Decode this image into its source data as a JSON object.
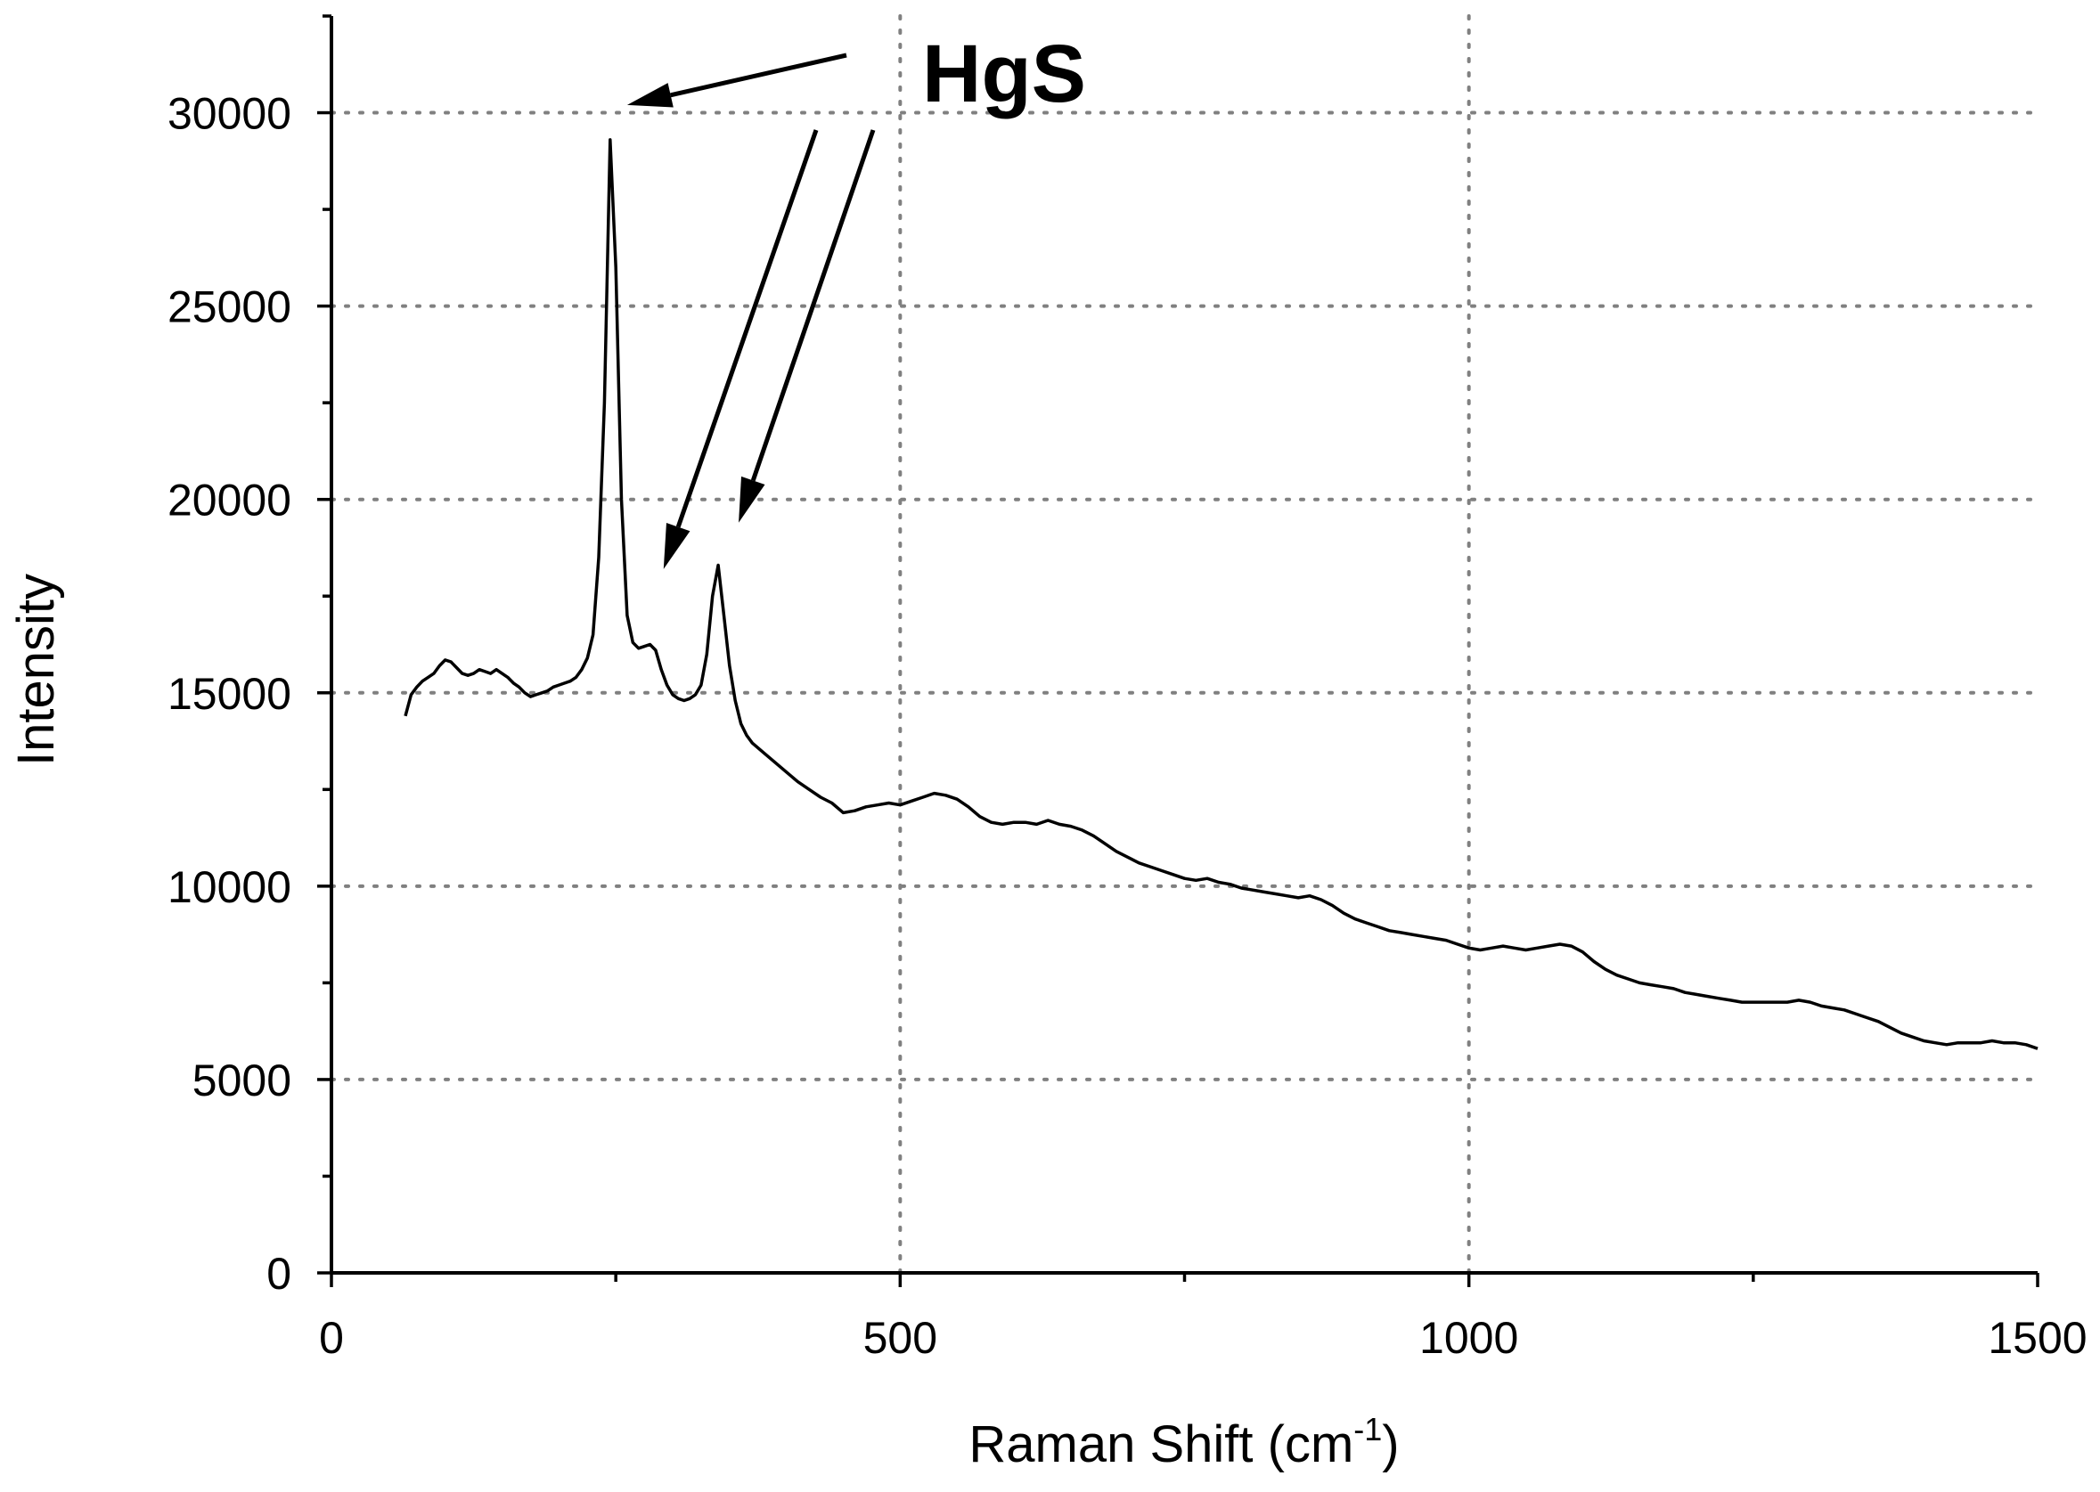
{
  "chart_data": {
    "type": "line",
    "xlabel_main": "Raman Shift (cm",
    "xlabel_sup": "-1",
    "xlabel_end": ")",
    "ylabel": "Intensity",
    "xlim": [
      0,
      1500
    ],
    "ylim": [
      0,
      32500
    ],
    "x_ticks": [
      0,
      500,
      1000,
      1500
    ],
    "y_ticks": [
      0,
      5000,
      10000,
      15000,
      20000,
      25000,
      30000
    ],
    "x_grid": [
      500,
      1000
    ],
    "y_grid": [
      5000,
      10000,
      15000,
      20000,
      25000,
      30000
    ],
    "grid": true,
    "annotation": {
      "text": "HgS",
      "arrow_targets": [
        {
          "x": 260,
          "y": 30200
        },
        {
          "x": 292,
          "y": 18200
        },
        {
          "x": 358,
          "y": 19400
        }
      ]
    },
    "series": [
      {
        "color": "#000000",
        "points": [
          [
            65,
            14400
          ],
          [
            70,
            14950
          ],
          [
            75,
            15150
          ],
          [
            80,
            15300
          ],
          [
            85,
            15400
          ],
          [
            90,
            15500
          ],
          [
            95,
            15700
          ],
          [
            100,
            15850
          ],
          [
            105,
            15800
          ],
          [
            110,
            15650
          ],
          [
            115,
            15500
          ],
          [
            120,
            15450
          ],
          [
            125,
            15500
          ],
          [
            130,
            15600
          ],
          [
            135,
            15550
          ],
          [
            140,
            15500
          ],
          [
            145,
            15600
          ],
          [
            150,
            15500
          ],
          [
            155,
            15400
          ],
          [
            160,
            15250
          ],
          [
            165,
            15150
          ],
          [
            170,
            15000
          ],
          [
            175,
            14900
          ],
          [
            180,
            14950
          ],
          [
            185,
            15000
          ],
          [
            190,
            15050
          ],
          [
            195,
            15150
          ],
          [
            200,
            15200
          ],
          [
            205,
            15250
          ],
          [
            210,
            15300
          ],
          [
            215,
            15400
          ],
          [
            220,
            15600
          ],
          [
            225,
            15900
          ],
          [
            230,
            16500
          ],
          [
            235,
            18500
          ],
          [
            240,
            22500
          ],
          [
            245,
            29300
          ],
          [
            250,
            26000
          ],
          [
            255,
            20000
          ],
          [
            260,
            17000
          ],
          [
            265,
            16300
          ],
          [
            270,
            16150
          ],
          [
            275,
            16200
          ],
          [
            280,
            16250
          ],
          [
            285,
            16100
          ],
          [
            290,
            15600
          ],
          [
            295,
            15200
          ],
          [
            300,
            14950
          ],
          [
            305,
            14850
          ],
          [
            310,
            14800
          ],
          [
            315,
            14850
          ],
          [
            320,
            14950
          ],
          [
            325,
            15200
          ],
          [
            330,
            16000
          ],
          [
            335,
            17500
          ],
          [
            340,
            18300
          ],
          [
            345,
            17000
          ],
          [
            350,
            15700
          ],
          [
            355,
            14800
          ],
          [
            360,
            14200
          ],
          [
            365,
            13900
          ],
          [
            370,
            13700
          ],
          [
            380,
            13450
          ],
          [
            390,
            13200
          ],
          [
            400,
            12950
          ],
          [
            410,
            12700
          ],
          [
            420,
            12500
          ],
          [
            430,
            12300
          ],
          [
            440,
            12150
          ],
          [
            450,
            11900
          ],
          [
            460,
            11950
          ],
          [
            470,
            12050
          ],
          [
            480,
            12100
          ],
          [
            490,
            12150
          ],
          [
            500,
            12100
          ],
          [
            510,
            12200
          ],
          [
            520,
            12300
          ],
          [
            530,
            12400
          ],
          [
            540,
            12350
          ],
          [
            550,
            12250
          ],
          [
            560,
            12050
          ],
          [
            570,
            11800
          ],
          [
            580,
            11650
          ],
          [
            590,
            11600
          ],
          [
            600,
            11650
          ],
          [
            610,
            11650
          ],
          [
            620,
            11600
          ],
          [
            630,
            11700
          ],
          [
            640,
            11600
          ],
          [
            650,
            11550
          ],
          [
            660,
            11450
          ],
          [
            670,
            11300
          ],
          [
            680,
            11100
          ],
          [
            690,
            10900
          ],
          [
            700,
            10750
          ],
          [
            710,
            10600
          ],
          [
            720,
            10500
          ],
          [
            730,
            10400
          ],
          [
            740,
            10300
          ],
          [
            750,
            10200
          ],
          [
            760,
            10150
          ],
          [
            770,
            10200
          ],
          [
            780,
            10100
          ],
          [
            790,
            10050
          ],
          [
            800,
            9950
          ],
          [
            810,
            9900
          ],
          [
            820,
            9850
          ],
          [
            830,
            9800
          ],
          [
            840,
            9750
          ],
          [
            850,
            9700
          ],
          [
            860,
            9750
          ],
          [
            870,
            9650
          ],
          [
            880,
            9500
          ],
          [
            890,
            9300
          ],
          [
            900,
            9150
          ],
          [
            910,
            9050
          ],
          [
            920,
            8950
          ],
          [
            930,
            8850
          ],
          [
            940,
            8800
          ],
          [
            950,
            8750
          ],
          [
            960,
            8700
          ],
          [
            970,
            8650
          ],
          [
            980,
            8600
          ],
          [
            990,
            8500
          ],
          [
            1000,
            8400
          ],
          [
            1010,
            8350
          ],
          [
            1020,
            8400
          ],
          [
            1030,
            8450
          ],
          [
            1040,
            8400
          ],
          [
            1050,
            8350
          ],
          [
            1060,
            8400
          ],
          [
            1070,
            8450
          ],
          [
            1080,
            8500
          ],
          [
            1090,
            8450
          ],
          [
            1100,
            8300
          ],
          [
            1110,
            8050
          ],
          [
            1120,
            7850
          ],
          [
            1130,
            7700
          ],
          [
            1140,
            7600
          ],
          [
            1150,
            7500
          ],
          [
            1160,
            7450
          ],
          [
            1170,
            7400
          ],
          [
            1180,
            7350
          ],
          [
            1190,
            7250
          ],
          [
            1200,
            7200
          ],
          [
            1210,
            7150
          ],
          [
            1220,
            7100
          ],
          [
            1230,
            7050
          ],
          [
            1240,
            7000
          ],
          [
            1250,
            7000
          ],
          [
            1260,
            7000
          ],
          [
            1270,
            7000
          ],
          [
            1280,
            7000
          ],
          [
            1290,
            7050
          ],
          [
            1300,
            7000
          ],
          [
            1310,
            6900
          ],
          [
            1320,
            6850
          ],
          [
            1330,
            6800
          ],
          [
            1340,
            6700
          ],
          [
            1350,
            6600
          ],
          [
            1360,
            6500
          ],
          [
            1370,
            6350
          ],
          [
            1380,
            6200
          ],
          [
            1390,
            6100
          ],
          [
            1400,
            6000
          ],
          [
            1410,
            5950
          ],
          [
            1420,
            5900
          ],
          [
            1430,
            5950
          ],
          [
            1440,
            5950
          ],
          [
            1450,
            5950
          ],
          [
            1460,
            6000
          ],
          [
            1470,
            5950
          ],
          [
            1480,
            5950
          ],
          [
            1490,
            5900
          ],
          [
            1500,
            5800
          ]
        ]
      }
    ]
  }
}
